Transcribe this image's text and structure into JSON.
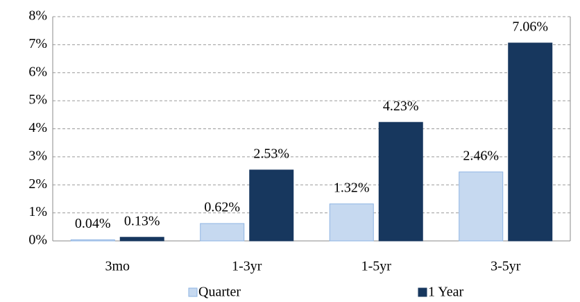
{
  "chart_data": {
    "type": "bar",
    "categories": [
      "3mo",
      "1-3yr",
      "1-5yr",
      "3-5yr"
    ],
    "series": [
      {
        "name": "Quarter",
        "color": "#c6d9f0",
        "values": [
          0.04,
          0.62,
          1.32,
          2.46
        ],
        "value_labels": [
          "0.04%",
          "0.62%",
          "1.32%",
          "2.46%"
        ]
      },
      {
        "name": "1 Year",
        "color": "#17375e",
        "values": [
          0.13,
          2.53,
          4.23,
          7.06
        ],
        "value_labels": [
          "0.13%",
          "2.53%",
          "4.23%",
          "7.06%"
        ]
      }
    ],
    "ylim": [
      0,
      8
    ],
    "yticks": [
      {
        "value": 0,
        "label": "0%"
      },
      {
        "value": 1,
        "label": "1%"
      },
      {
        "value": 2,
        "label": "2%"
      },
      {
        "value": 3,
        "label": "3%"
      },
      {
        "value": 4,
        "label": "4%"
      },
      {
        "value": 5,
        "label": "5%"
      },
      {
        "value": 6,
        "label": "6%"
      },
      {
        "value": 7,
        "label": "7%"
      },
      {
        "value": 8,
        "label": "8%"
      }
    ],
    "grid": true,
    "legend": "bottom"
  }
}
